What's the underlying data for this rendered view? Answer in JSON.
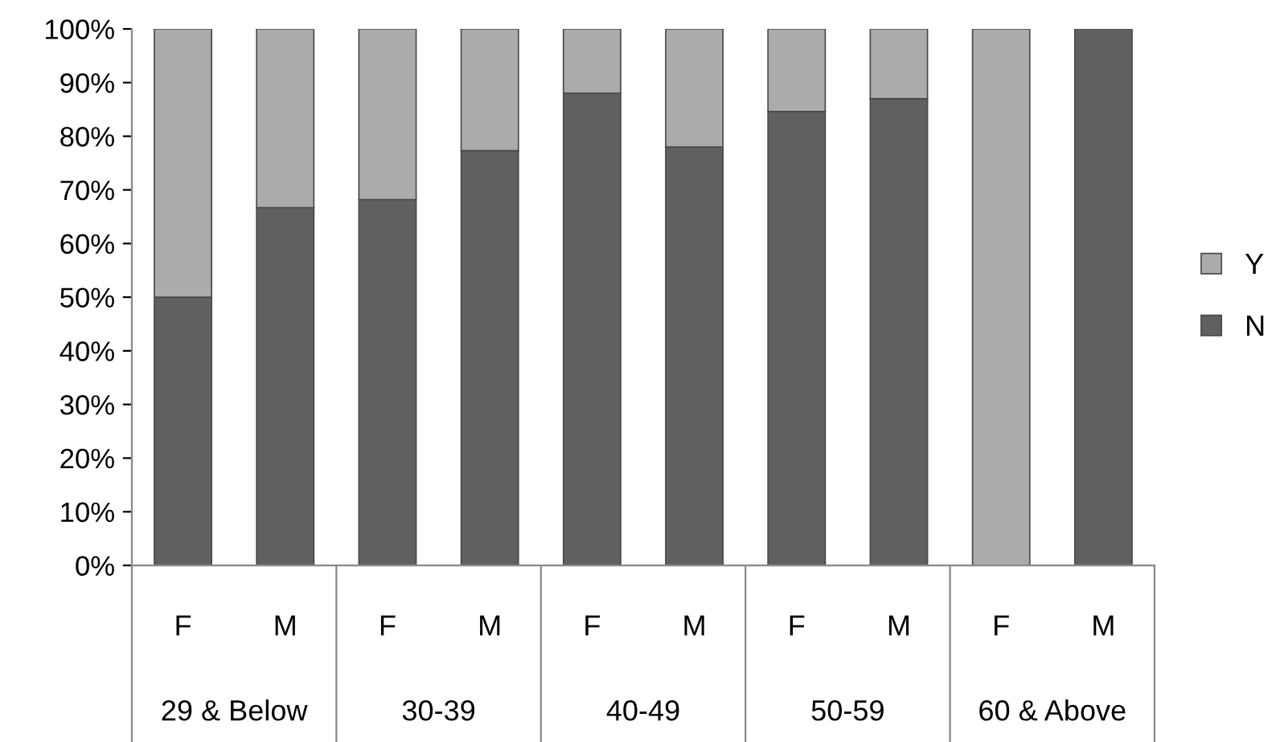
{
  "chart_data": {
    "type": "bar",
    "stacked": true,
    "categories": [
      "F",
      "M",
      "F",
      "M",
      "F",
      "M",
      "F",
      "M",
      "F",
      "M"
    ],
    "annotations": [
      "29 & Below",
      "30-39",
      "40-49",
      "50-59",
      "60 & Above"
    ],
    "series": [
      {
        "name": "N",
        "color": "#606060",
        "values": [
          50,
          66.7,
          68.2,
          77.3,
          88,
          78,
          84.6,
          87,
          0,
          100
        ]
      },
      {
        "name": "Y",
        "color": "#ababab",
        "values": [
          50,
          33.3,
          31.8,
          22.7,
          12,
          22,
          15.4,
          13,
          100,
          0
        ]
      }
    ],
    "ylim": [
      0,
      100
    ],
    "yticks": [
      {
        "value": 0,
        "label": "0%"
      },
      {
        "value": 10,
        "label": "10%"
      },
      {
        "value": 20,
        "label": "20%"
      },
      {
        "value": 30,
        "label": "30%"
      },
      {
        "value": 40,
        "label": "40%"
      },
      {
        "value": 50,
        "label": "50%"
      },
      {
        "value": 60,
        "label": "60%"
      },
      {
        "value": 70,
        "label": "70%"
      },
      {
        "value": 80,
        "label": "80%"
      },
      {
        "value": 90,
        "label": "90%"
      },
      {
        "value": 100,
        "label": "100%"
      }
    ],
    "grid": false,
    "legend": "right"
  }
}
